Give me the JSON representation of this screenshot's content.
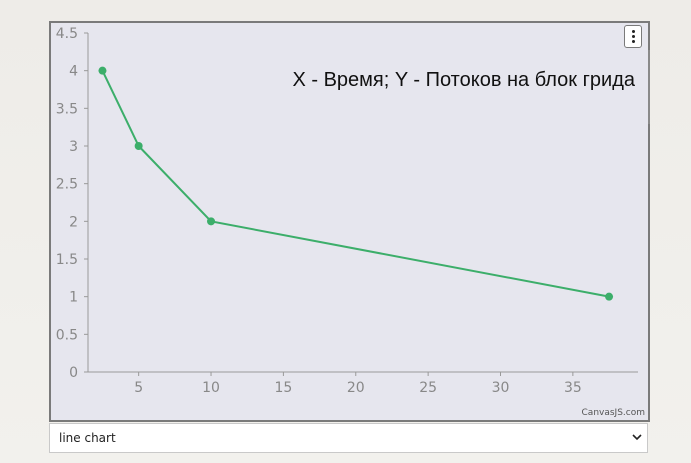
{
  "chart_data": {
    "type": "line",
    "title": "X - Время; Y - Потоков на блок грида",
    "x": [
      2.5,
      5,
      10,
      37.5
    ],
    "series": [
      {
        "values": [
          4,
          3,
          2,
          1
        ],
        "color": "#3cae6a"
      }
    ],
    "xlim": [
      1.5,
      39.5
    ],
    "ylim": [
      0,
      4.5
    ],
    "x_ticks": [
      "5",
      "10",
      "15",
      "20",
      "25",
      "30",
      "35"
    ],
    "y_ticks": [
      "0",
      "0.5",
      "1",
      "1.5",
      "2",
      "2.5",
      "3",
      "3.5",
      "4",
      "4.5"
    ],
    "grid": false,
    "credit": "CanvasJS.com"
  },
  "controls": {
    "chart_type_select": {
      "value": "line chart"
    }
  },
  "colors": {
    "plot_background": "#e6e6ee",
    "line": "#3cae6a",
    "axis": "#999999"
  },
  "icons": {
    "menu": "kebab-menu-icon",
    "dropdown": "chevron-down-icon"
  }
}
